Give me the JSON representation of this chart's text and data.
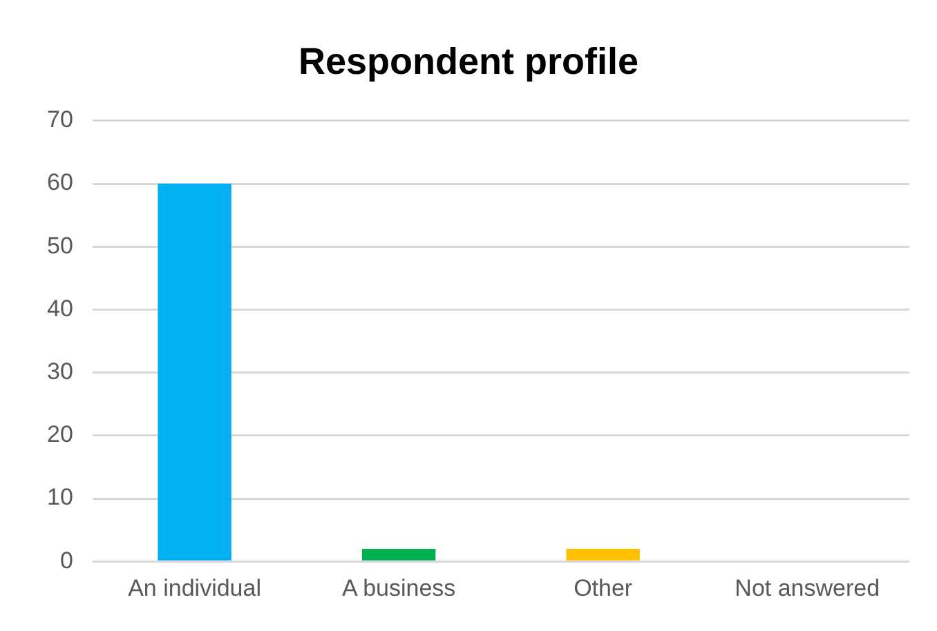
{
  "chart_data": {
    "type": "bar",
    "title": "Respondent profile",
    "categories": [
      "An individual",
      "A business",
      "Other",
      "Not answered"
    ],
    "values": [
      60,
      2,
      2,
      0
    ],
    "colors": [
      "#00b0f0",
      "#00b050",
      "#ffc000",
      "#a5a5a5"
    ],
    "ylim": [
      0,
      70
    ],
    "yticks": [
      0,
      10,
      20,
      30,
      40,
      50,
      60,
      70
    ],
    "grid": "y"
  }
}
